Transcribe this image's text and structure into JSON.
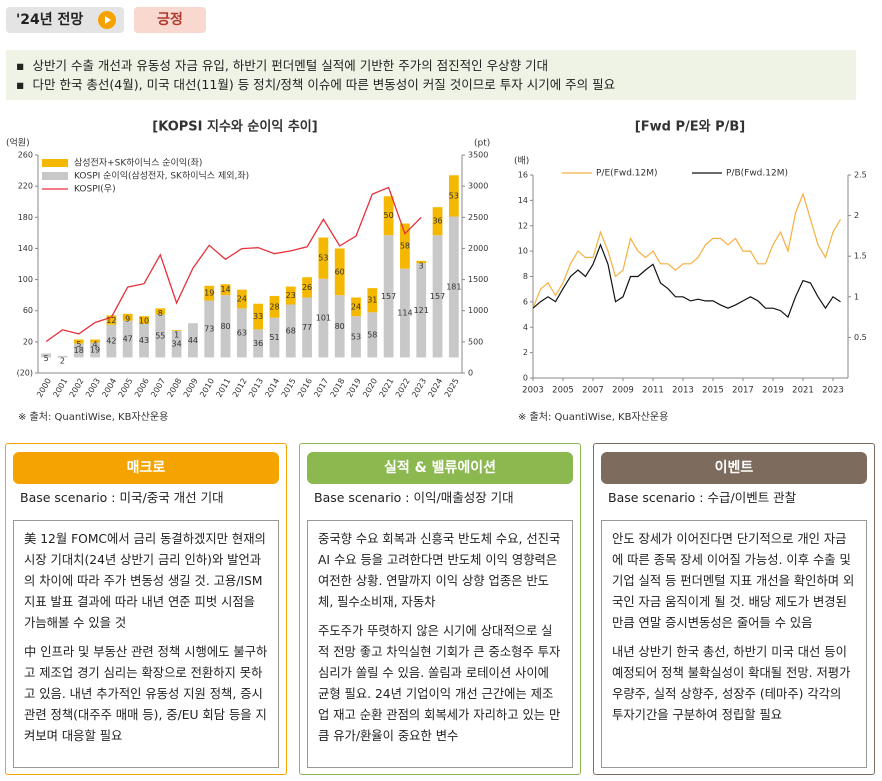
{
  "header": {
    "title": "'24년 전망",
    "tag": "긍정"
  },
  "bullets": [
    "상반기 수출 개선과 유동성 자금 유입, 하반기 펀더멘털 실적에 기반한 주가의 점진적인 우상향 기대",
    "다만 한국 총선(4월), 미국 대선(11월) 등 정치/정책 이슈에 따른 변동성이 커질 것이므로 투자 시기에 주의 필요"
  ],
  "chart_data": [
    {
      "type": "bar",
      "title": "[KOPSI 지수와 순이익 추이]",
      "y_label": "(억원)",
      "y2_label": "(pt)",
      "source": "※ 출처: QuantiWise, KB자산운용",
      "stacked": true,
      "categories": [
        "2000",
        "2001",
        "2002",
        "2003",
        "2004",
        "2005",
        "2006",
        "2007",
        "2008",
        "2009",
        "2010",
        "2011",
        "2012",
        "2013",
        "2014",
        "2015",
        "2016",
        "2017",
        "2018",
        "2019",
        "2020",
        "2021",
        "2022",
        "2023",
        "2024",
        "2025"
      ],
      "series": [
        {
          "name": "KOSPI 순이익(삼성전자, SK하이닉스 제외,좌)",
          "color": "#c8c8c8",
          "values": [
            5,
            2,
            18,
            19,
            42,
            47,
            43,
            55,
            34,
            44,
            73,
            80,
            63,
            36,
            51,
            68,
            77,
            101,
            80,
            53,
            58,
            157,
            114,
            121,
            157,
            181
          ]
        },
        {
          "name": "삼성전자+SK하이닉스 순이익(좌)",
          "color": "#f5b800",
          "values": [
            null,
            null,
            5,
            4,
            12,
            9,
            10,
            8,
            1,
            null,
            19,
            14,
            24,
            33,
            28,
            23,
            26,
            53,
            60,
            24,
            31,
            50,
            58,
            3,
            36,
            53
          ]
        },
        {
          "name": "KOSPI(우)",
          "color": "#e8303a",
          "type": "line",
          "axis": "y2",
          "values": [
            505,
            694,
            628,
            811,
            896,
            1379,
            1434,
            1897,
            1124,
            1683,
            2051,
            1826,
            1997,
            2011,
            1916,
            1961,
            2026,
            2467,
            2041,
            2198,
            2873,
            2978,
            2236,
            2500,
            null,
            null
          ]
        }
      ],
      "legend_order": [
        1,
        0,
        2
      ],
      "ylim": [
        -20,
        260
      ],
      "yticks": [
        {
          "value": -20,
          "label": "(20)"
        },
        20,
        60,
        100,
        140,
        180,
        220,
        260
      ],
      "y2lim": [
        0,
        3500
      ],
      "y2ticks": [
        0,
        500,
        1000,
        1500,
        2000,
        2500,
        3000,
        3500
      ]
    },
    {
      "type": "line",
      "title": "[Fwd P/E와 P/B]",
      "y_label": "(배)",
      "source": "※ 출처: QuantiWise, KB자산운용",
      "x": [
        2003,
        2003.5,
        2004,
        2004.5,
        2005,
        2005.5,
        2006,
        2006.5,
        2007,
        2007.5,
        2008,
        2008.5,
        2009,
        2009.5,
        2010,
        2010.5,
        2011,
        2011.5,
        2012,
        2012.5,
        2013,
        2013.5,
        2014,
        2014.5,
        2015,
        2015.5,
        2016,
        2016.5,
        2017,
        2017.5,
        2018,
        2018.5,
        2019,
        2019.5,
        2020,
        2020.5,
        2021,
        2021.5,
        2022,
        2022.5,
        2023,
        2023.5
      ],
      "series": [
        {
          "name": "P/E(Fwd.12M)",
          "color": "#f5b040",
          "values": [
            5.5,
            7,
            7.5,
            6.5,
            7.5,
            9,
            10,
            9.5,
            9.5,
            11.5,
            10,
            8,
            8.5,
            11,
            10,
            9.5,
            10,
            9,
            9,
            8.5,
            9,
            9,
            9.5,
            10.5,
            11,
            11,
            10.5,
            11,
            10,
            10,
            9,
            9,
            10.5,
            11.5,
            10,
            13,
            14.5,
            12.5,
            10.5,
            9.5,
            11.5,
            12.5
          ]
        },
        {
          "name": "P/B(Fwd.12M)",
          "color": "#111111",
          "axis": "y2",
          "values": [
            0.86,
            0.94,
            1.0,
            0.94,
            1.1,
            1.25,
            1.33,
            1.25,
            1.4,
            1.64,
            1.4,
            0.94,
            1.0,
            1.25,
            1.25,
            1.33,
            1.4,
            1.17,
            1.1,
            1.0,
            1.0,
            0.95,
            0.97,
            0.95,
            0.95,
            0.9,
            0.86,
            0.9,
            0.95,
            1.0,
            0.95,
            0.86,
            0.86,
            0.83,
            0.75,
            1.0,
            1.2,
            1.17,
            1.0,
            0.86,
            1.0,
            0.94
          ]
        }
      ],
      "xlim": [
        2003,
        2024
      ],
      "xticks": [
        2003,
        2005,
        2007,
        2009,
        2011,
        2013,
        2015,
        2017,
        2019,
        2021,
        2023
      ],
      "ylim": [
        0,
        16
      ],
      "yticks": [
        0,
        2,
        4,
        6,
        8,
        10,
        12,
        14,
        16
      ],
      "y2lim": [
        0,
        2.5
      ],
      "y2ticks": [
        0.5,
        1,
        1.5,
        2,
        2.5
      ]
    }
  ],
  "cards": [
    {
      "title": "매크로",
      "scenario": "Base scenario : 미국/중국 개선 기대",
      "paragraphs": [
        "美 12월 FOMC에서 금리 동결하겠지만 현재의 시장 기대치(24년 상반기 금리 인하)와 발언과의 차이에 따라 주가 변동성 생길 것. 고용/ISM 지표 발표 결과에 따라 내년 연준 피벗 시점을 가늠해볼 수 있을 것",
        "中 인프라 및 부동산 관련 정책 시행에도 불구하고 제조업 경기 심리는 확장으로 전환하지 못하고 있음. 내년 추가적인 유동성 지원 정책, 증시관련 정책(대주주 매매 등), 중/EU 회담 등을 지켜보며 대응할 필요"
      ]
    },
    {
      "title": "실적 & 밸류에이션",
      "scenario": "Base scenario : 이익/매출성장 기대",
      "paragraphs": [
        "중국향 수요 회복과 신흥국 반도체 수요, 선진국 AI 수요 등을 고려한다면 반도체 이익 영향력은 여전한 상황. 연말까지 이익 상향 업종은 반도체, 필수소비재, 자동차",
        "주도주가 뚜렷하지 않은 시기에 상대적으로 실적 전망 좋고 차익실현 기회가 큰 중소형주 투자 심리가 쏠릴 수 있음. 쏠림과 로테이션 사이에 균형 필요. 24년 기업이익 개선 근간에는 제조업 재고 순환 관점의 회복세가 자리하고 있는 만큼 유가/환율이 중요한 변수"
      ]
    },
    {
      "title": "이벤트",
      "scenario": "Base scenario : 수급/이벤트 관찰",
      "paragraphs": [
        "안도 장세가 이어진다면 단기적으로 개인 자금에 따른 종목 장세 이어질 가능성. 이후 수출 및 기업 실적 등 펀더멘털 지표 개선을 확인하며 외국인 자금 움직이게 될 것. 배당 제도가 변경된 만큼 연말 증시변동성은 줄어들 수 있음",
        "내년 상반기 한국 총선, 하반기 미국 대선 등이 예정되어 정책 불확실성이 확대될 전망. 저평가 우량주, 실적 상향주, 성장주 (테마주) 각각의 투자기간을 구분하여 정립할 필요"
      ]
    }
  ]
}
